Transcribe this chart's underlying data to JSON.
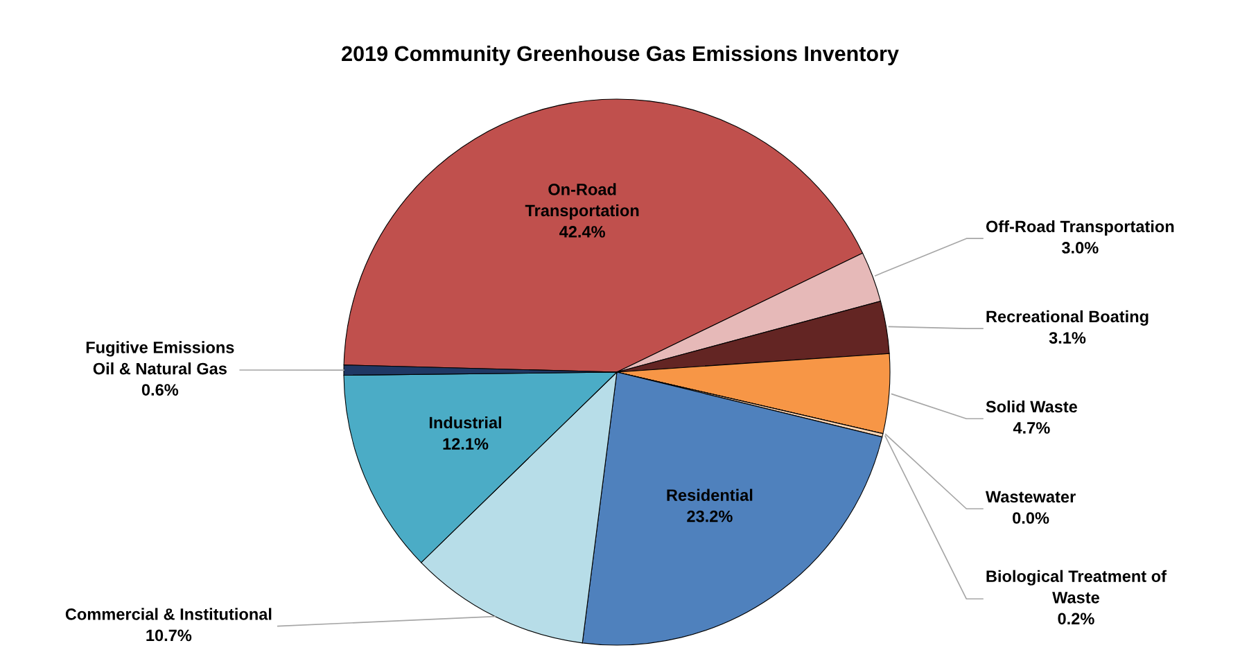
{
  "chart_data": {
    "type": "pie",
    "title": "2019 Community Greenhouse Gas Emissions Inventory",
    "categories": [
      "On-Road\nTransportation",
      "Off-Road Transportation",
      "Recreational Boating",
      "Solid Waste",
      "Wastewater",
      "Biological Treatment of\nWaste",
      "Residential",
      "Commercial & Institutional",
      "Industrial",
      "Fugitive Emissions\nOil & Natural Gas"
    ],
    "values": [
      42.4,
      3.0,
      3.1,
      4.7,
      0.0,
      0.2,
      23.2,
      10.7,
      12.1,
      0.6
    ],
    "value_labels": [
      "42.4%",
      "3.0%",
      "3.1%",
      "4.7%",
      "0.0%",
      "0.2%",
      "23.2%",
      "10.7%",
      "12.1%",
      "0.6%"
    ],
    "colors": [
      "#c0504d",
      "#e6b9b8",
      "#632523",
      "#f79646",
      "#ffffff",
      "#fcd5b4",
      "#4f81bd",
      "#b7dde8",
      "#4bacc6",
      "#1f3864"
    ]
  }
}
